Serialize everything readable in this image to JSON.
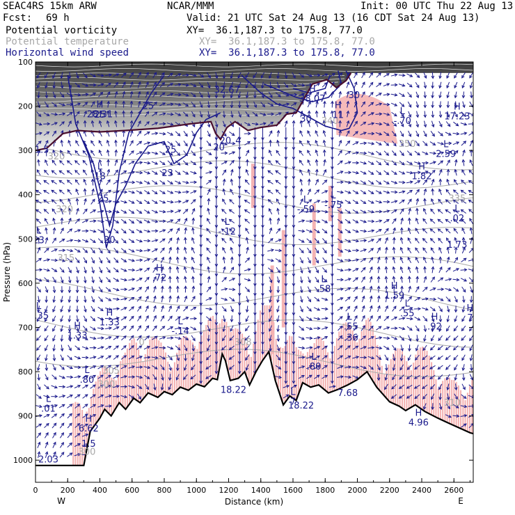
{
  "header": {
    "model": "SEAC4RS 15km ARW",
    "org": "NCAR/MMM",
    "init": "Init: 00 UTC Thu 22 Aug 13",
    "fcst_label": "Fcst:",
    "fcst_value": "69 h",
    "valid": "Valid: 21 UTC Sat 24 Aug 13 (16 CDT Sat 24 Aug 13)"
  },
  "legend": [
    {
      "name": "Potential vorticity",
      "xy": "XY=  36.1,187.3 to 175.8, 77.0",
      "color": "#000000"
    },
    {
      "name": "Potential temperature",
      "xy": "XY=  36.1,187.3 to 175.8, 77.0",
      "color": "#a8a8a8"
    },
    {
      "name": "Horizontal wind speed",
      "xy": "XY=  36.1,187.3 to 175.8, 77.0",
      "color": "#1a1a8c"
    }
  ],
  "chart_data": {
    "type": "cross-section",
    "xlabel": "Distance (km)",
    "ylabel": "Pressure (hPa)",
    "xlim": [
      0,
      2720
    ],
    "ylim": [
      1050,
      100
    ],
    "x_ticks": [
      0,
      200,
      400,
      600,
      800,
      1000,
      1200,
      1400,
      1600,
      1800,
      2000,
      2200,
      2400,
      2600
    ],
    "y_ticks": [
      100,
      200,
      300,
      400,
      500,
      600,
      700,
      800,
      900,
      1000
    ],
    "left_end_label": "W",
    "right_end_label": "E",
    "colors": {
      "pv_fill": "#f4b3b3",
      "theta": "#a8a8a8",
      "wind": "#1a1a8c",
      "pv_line": "#4a0f2e",
      "terrain": "#000000"
    },
    "terrain": [
      {
        "x": 0,
        "p": 1012
      },
      {
        "x": 300,
        "p": 1012
      },
      {
        "x": 340,
        "p": 935
      },
      {
        "x": 400,
        "p": 905
      },
      {
        "x": 430,
        "p": 885
      },
      {
        "x": 470,
        "p": 900
      },
      {
        "x": 520,
        "p": 870
      },
      {
        "x": 560,
        "p": 885
      },
      {
        "x": 610,
        "p": 860
      },
      {
        "x": 650,
        "p": 870
      },
      {
        "x": 700,
        "p": 848
      },
      {
        "x": 760,
        "p": 858
      },
      {
        "x": 800,
        "p": 845
      },
      {
        "x": 850,
        "p": 852
      },
      {
        "x": 900,
        "p": 835
      },
      {
        "x": 950,
        "p": 842
      },
      {
        "x": 1000,
        "p": 828
      },
      {
        "x": 1050,
        "p": 834
      },
      {
        "x": 1100,
        "p": 815
      },
      {
        "x": 1130,
        "p": 818
      },
      {
        "x": 1160,
        "p": 760
      },
      {
        "x": 1180,
        "p": 775
      },
      {
        "x": 1210,
        "p": 820
      },
      {
        "x": 1260,
        "p": 815
      },
      {
        "x": 1300,
        "p": 800
      },
      {
        "x": 1330,
        "p": 830
      },
      {
        "x": 1370,
        "p": 800
      },
      {
        "x": 1410,
        "p": 775
      },
      {
        "x": 1450,
        "p": 755
      },
      {
        "x": 1490,
        "p": 820
      },
      {
        "x": 1540,
        "p": 875
      },
      {
        "x": 1580,
        "p": 855
      },
      {
        "x": 1620,
        "p": 865
      },
      {
        "x": 1660,
        "p": 825
      },
      {
        "x": 1710,
        "p": 835
      },
      {
        "x": 1760,
        "p": 830
      },
      {
        "x": 1820,
        "p": 848
      },
      {
        "x": 1880,
        "p": 840
      },
      {
        "x": 1940,
        "p": 830
      },
      {
        "x": 2000,
        "p": 818
      },
      {
        "x": 2060,
        "p": 800
      },
      {
        "x": 2120,
        "p": 835
      },
      {
        "x": 2200,
        "p": 868
      },
      {
        "x": 2260,
        "p": 878
      },
      {
        "x": 2300,
        "p": 888
      },
      {
        "x": 2360,
        "p": 875
      },
      {
        "x": 2420,
        "p": 890
      },
      {
        "x": 2500,
        "p": 905
      },
      {
        "x": 2560,
        "p": 915
      },
      {
        "x": 2620,
        "p": 925
      },
      {
        "x": 2700,
        "p": 938
      },
      {
        "x": 2720,
        "p": 940
      }
    ],
    "pv_2pvu": [
      {
        "x": 0,
        "p": 300
      },
      {
        "x": 70,
        "p": 295
      },
      {
        "x": 170,
        "p": 262
      },
      {
        "x": 260,
        "p": 255
      },
      {
        "x": 400,
        "p": 258
      },
      {
        "x": 560,
        "p": 255
      },
      {
        "x": 760,
        "p": 250
      },
      {
        "x": 960,
        "p": 240
      },
      {
        "x": 1090,
        "p": 235
      },
      {
        "x": 1120,
        "p": 262
      },
      {
        "x": 1150,
        "p": 275
      },
      {
        "x": 1190,
        "p": 248
      },
      {
        "x": 1240,
        "p": 235
      },
      {
        "x": 1320,
        "p": 255
      },
      {
        "x": 1400,
        "p": 248
      },
      {
        "x": 1500,
        "p": 243
      },
      {
        "x": 1560,
        "p": 218
      },
      {
        "x": 1620,
        "p": 215
      },
      {
        "x": 1720,
        "p": 150
      },
      {
        "x": 1810,
        "p": 140
      },
      {
        "x": 1870,
        "p": 158
      },
      {
        "x": 1930,
        "p": 142
      },
      {
        "x": 1960,
        "p": 125
      }
    ],
    "theta_labels": [
      {
        "x": 130,
        "p": 320,
        "text": "320"
      },
      {
        "x": 180,
        "p": 440,
        "text": "320"
      },
      {
        "x": 190,
        "p": 550,
        "text": "315"
      },
      {
        "x": 2620,
        "p": 415,
        "text": "335"
      },
      {
        "x": 660,
        "p": 740,
        "text": "0"
      },
      {
        "x": 470,
        "p": 805,
        "text": "305"
      },
      {
        "x": 440,
        "p": 835,
        "text": "300"
      },
      {
        "x": 1290,
        "p": 740,
        "text": "308"
      },
      {
        "x": 2590,
        "p": 877,
        "text": "310"
      },
      {
        "x": 320,
        "p": 988,
        "text": "300"
      },
      {
        "x": 1830,
        "p": 240,
        "text": "340"
      },
      {
        "x": 2310,
        "p": 292,
        "text": "350"
      }
    ],
    "wind_contour_labels": [
      {
        "x": 40,
        "p": 305,
        "text": "1.5"
      },
      {
        "x": 400,
        "p": 226,
        "text": "25"
      },
      {
        "x": 700,
        "p": 206,
        "text": "25"
      },
      {
        "x": 840,
        "p": 305,
        "text": "25"
      },
      {
        "x": 420,
        "p": 415,
        "text": "25"
      },
      {
        "x": 820,
        "p": 358,
        "text": "23"
      },
      {
        "x": 460,
        "p": 509,
        "text": "20"
      },
      {
        "x": 1180,
        "p": 285,
        "text": "20"
      },
      {
        "x": 1260,
        "p": 285,
        "text": "4"
      },
      {
        "x": 1680,
        "p": 235,
        "text": "30"
      },
      {
        "x": 1980,
        "p": 182,
        "text": "30"
      }
    ],
    "extrema": [
      {
        "x": 400,
        "p": 225,
        "type": "H",
        "value": "28.31"
      },
      {
        "x": 400,
        "p": 365,
        "type": "L",
        "value": "18"
      },
      {
        "x": 20,
        "p": 510,
        "type": "L",
        "value": "23"
      },
      {
        "x": 20,
        "p": 680,
        "type": "L",
        "value": "1.35"
      },
      {
        "x": 260,
        "p": 725,
        "type": "H",
        "value": "1.33"
      },
      {
        "x": 460,
        "p": 695,
        "type": "H",
        "value": "1.33"
      },
      {
        "x": 770,
        "p": 595,
        "type": "H",
        "value": ".72"
      },
      {
        "x": 900,
        "p": 715,
        "type": "L",
        "value": "-.14"
      },
      {
        "x": 1190,
        "p": 490,
        "type": "L",
        "value": "-.12"
      },
      {
        "x": 1680,
        "p": 440,
        "type": "L",
        "value": "-.59"
      },
      {
        "x": 1850,
        "p": 430,
        "type": "L",
        "value": "-.75"
      },
      {
        "x": 1790,
        "p": 620,
        "type": "L",
        "value": ".58"
      },
      {
        "x": 2230,
        "p": 635,
        "type": "H",
        "value": "1.59"
      },
      {
        "x": 2310,
        "p": 675,
        "type": "L",
        "value": ".55"
      },
      {
        "x": 2480,
        "p": 705,
        "type": "H",
        "value": ".92"
      },
      {
        "x": 2700,
        "p": 685,
        "type": "H",
        "value": "7"
      },
      {
        "x": 2550,
        "p": 315,
        "type": "L",
        "value": "2.59"
      },
      {
        "x": 2400,
        "p": 365,
        "type": "H",
        "value": "1.82"
      },
      {
        "x": 2620,
        "p": 460,
        "type": "L",
        "value": ".02"
      },
      {
        "x": 2620,
        "p": 520,
        "type": "",
        "value": "1.73"
      },
      {
        "x": 2280,
        "p": 240,
        "type": "L",
        "value": "-.70"
      },
      {
        "x": 2620,
        "p": 230,
        "type": "H",
        "value": "17.23"
      },
      {
        "x": 1880,
        "p": 227,
        "type": "H",
        "value": "11"
      },
      {
        "x": 1720,
        "p": 190,
        "type": "H",
        "value": "38.07"
      },
      {
        "x": 1190,
        "p": 170,
        "type": "",
        "value": "32.67"
      },
      {
        "x": 1140,
        "p": 300,
        "type": "",
        "value": "20"
      },
      {
        "x": 320,
        "p": 825,
        "type": "L",
        "value": ".80"
      },
      {
        "x": 80,
        "p": 890,
        "type": "L",
        "value": ".01"
      },
      {
        "x": 330,
        "p": 935,
        "type": "H",
        "value": "6.62"
      },
      {
        "x": 330,
        "p": 970,
        "type": "",
        "value": "1.5"
      },
      {
        "x": 80,
        "p": 1005,
        "type": "",
        "value": "2.03"
      },
      {
        "x": 1230,
        "p": 848,
        "type": "",
        "value": "18.22"
      },
      {
        "x": 1650,
        "p": 883,
        "type": "",
        "value": "18.22"
      },
      {
        "x": 1600,
        "p": 875,
        "type": "L",
        "value": "7"
      },
      {
        "x": 1730,
        "p": 795,
        "type": "L",
        "value": ".80"
      },
      {
        "x": 1950,
        "p": 705,
        "type": "L",
        "value": "-.55"
      },
      {
        "x": 1950,
        "p": 730,
        "type": "",
        "value": "-.36"
      },
      {
        "x": 1940,
        "p": 855,
        "type": "",
        "value": "7.68"
      },
      {
        "x": 2380,
        "p": 922,
        "type": "H",
        "value": "4.96"
      }
    ]
  }
}
